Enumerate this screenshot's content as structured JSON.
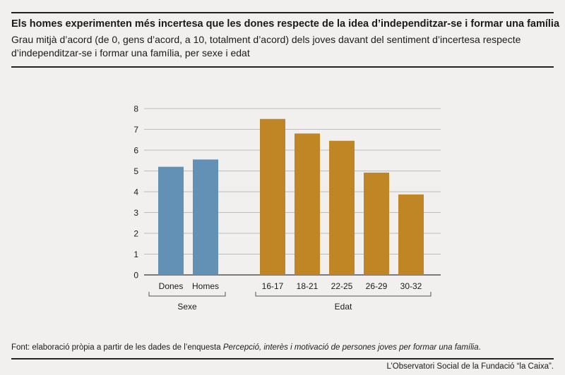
{
  "header": {
    "title": "Els homes experimenten més incertesa que les dones respecte de la idea d’independitzar-se i formar una família",
    "subtitle": "Grau mitjà d’acord (de 0, gens d’acord, a 10, totalment d’acord) dels joves davant del sentiment d’incertesa respecte d’independitzar-se i formar una família, per sexe i edat"
  },
  "chart_data": {
    "type": "bar",
    "ylim": [
      0,
      8
    ],
    "yticks": [
      "0",
      "1",
      "2",
      "3",
      "4",
      "5",
      "6",
      "7",
      "8"
    ],
    "grid": true,
    "groups": [
      {
        "label": "Sexe",
        "color": "#6391b5",
        "categories": [
          "Dones",
          "Homes"
        ],
        "values": [
          5.2,
          5.55
        ]
      },
      {
        "label": "Edat",
        "color": "#c08626",
        "categories": [
          "16-17",
          "18-21",
          "22-25",
          "26-29",
          "30-32"
        ],
        "values": [
          7.5,
          6.8,
          6.45,
          4.92,
          3.87
        ]
      }
    ]
  },
  "footer": {
    "source_prefix": "Font: elaboració pròpia a partir de les dades de l’enquesta ",
    "source_title": "Percepció, interès i motivació de persones joves per formar una família",
    "source_suffix": ".",
    "credit": "L’Observatori Social de la Fundació “la Caixa”."
  }
}
